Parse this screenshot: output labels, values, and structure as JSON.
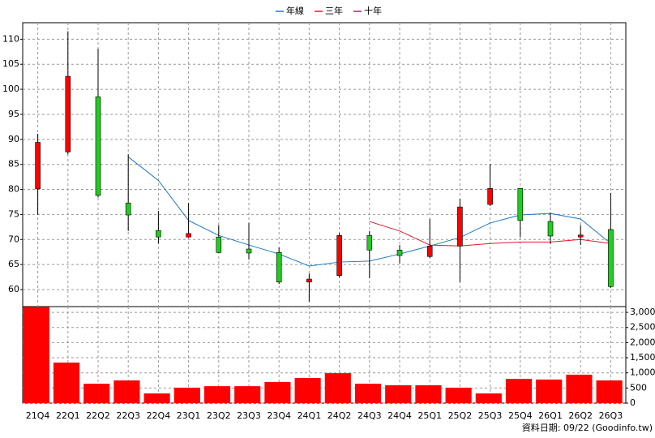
{
  "chart_data": {
    "type": "candlestick",
    "categories": [
      "21Q4",
      "22Q1",
      "22Q2",
      "22Q3",
      "22Q4",
      "23Q1",
      "23Q2",
      "23Q3",
      "23Q4",
      "24Q1",
      "24Q2",
      "24Q3",
      "24Q4",
      "25Q1",
      "25Q2",
      "25Q3",
      "25Q4",
      "26Q1",
      "26Q2",
      "26Q3"
    ],
    "open": [
      80.1,
      87.5,
      98.5,
      77.3,
      71.8,
      70.5,
      70.5,
      68.1,
      67.4,
      61.5,
      62.8,
      70.8,
      67.9,
      66.6,
      68.7,
      77.0,
      80.2,
      73.6,
      70.5,
      72.0
    ],
    "high": [
      91.1,
      111.6,
      108.1,
      87.0,
      75.7,
      77.3,
      72.9,
      73.3,
      68.4,
      63.2,
      71.3,
      71.7,
      68.9,
      74.1,
      78.1,
      85.1,
      80.2,
      75.4,
      72.9,
      79.3
    ],
    "low": [
      74.9,
      87.0,
      78.4,
      71.7,
      69.2,
      70.4,
      67.3,
      66.0,
      61.1,
      57.6,
      62.4,
      62.3,
      65.2,
      66.3,
      61.5,
      76.7,
      70.5,
      69.1,
      68.9,
      60.3
    ],
    "close": [
      89.4,
      102.6,
      78.8,
      74.9,
      70.5,
      71.2,
      67.4,
      67.3,
      61.5,
      62.1,
      70.8,
      67.9,
      66.8,
      68.7,
      76.5,
      80.2,
      73.8,
      70.7,
      70.9,
      60.6
    ],
    "up_color": "#ff0000",
    "down_color": "#22cc22",
    "series": [
      {
        "name": "年線",
        "color": "#1c78c8",
        "values": [
          null,
          null,
          null,
          86.5,
          81.8,
          73.8,
          70.8,
          68.9,
          67.1,
          64.7,
          65.5,
          65.7,
          67.1,
          68.7,
          70.4,
          73.3,
          74.9,
          75.2,
          74.1,
          69.2
        ]
      },
      {
        "name": "三年",
        "color": "#e0182c",
        "values": [
          null,
          null,
          null,
          null,
          null,
          null,
          null,
          null,
          null,
          null,
          null,
          73.6,
          71.7,
          68.9,
          68.7,
          69.2,
          69.5,
          69.5,
          70.0,
          69.2
        ]
      },
      {
        "name": "十年",
        "color": "#a0206e",
        "values": [
          null,
          null,
          null,
          null,
          null,
          null,
          null,
          null,
          null,
          null,
          null,
          null,
          null,
          null,
          null,
          null,
          null,
          null,
          null,
          null
        ]
      }
    ],
    "ylim": [
      56.6,
      113.3
    ],
    "yticks": [
      60,
      65,
      70,
      75,
      80,
      85,
      90,
      95,
      100,
      105,
      110
    ],
    "grid": true,
    "legend": "top",
    "volume": {
      "type": "bar",
      "color": "#ff0000",
      "values": [
        3180,
        1340,
        640,
        750,
        320,
        510,
        560,
        560,
        700,
        830,
        990,
        640,
        590,
        590,
        510,
        320,
        800,
        780,
        940,
        750
      ],
      "ylim": [
        0,
        3190
      ],
      "yticks": [
        0,
        500,
        {
          "value": 1000,
          "label": "1,000"
        },
        {
          "value": 1500,
          "label": "1,500"
        },
        {
          "value": 2000,
          "label": "2,000"
        },
        {
          "value": 2500,
          "label": "2,500"
        },
        {
          "value": 3000,
          "label": "3,000"
        }
      ]
    },
    "note": "資料日期: 09/22 (Goodinfo.tw)"
  }
}
